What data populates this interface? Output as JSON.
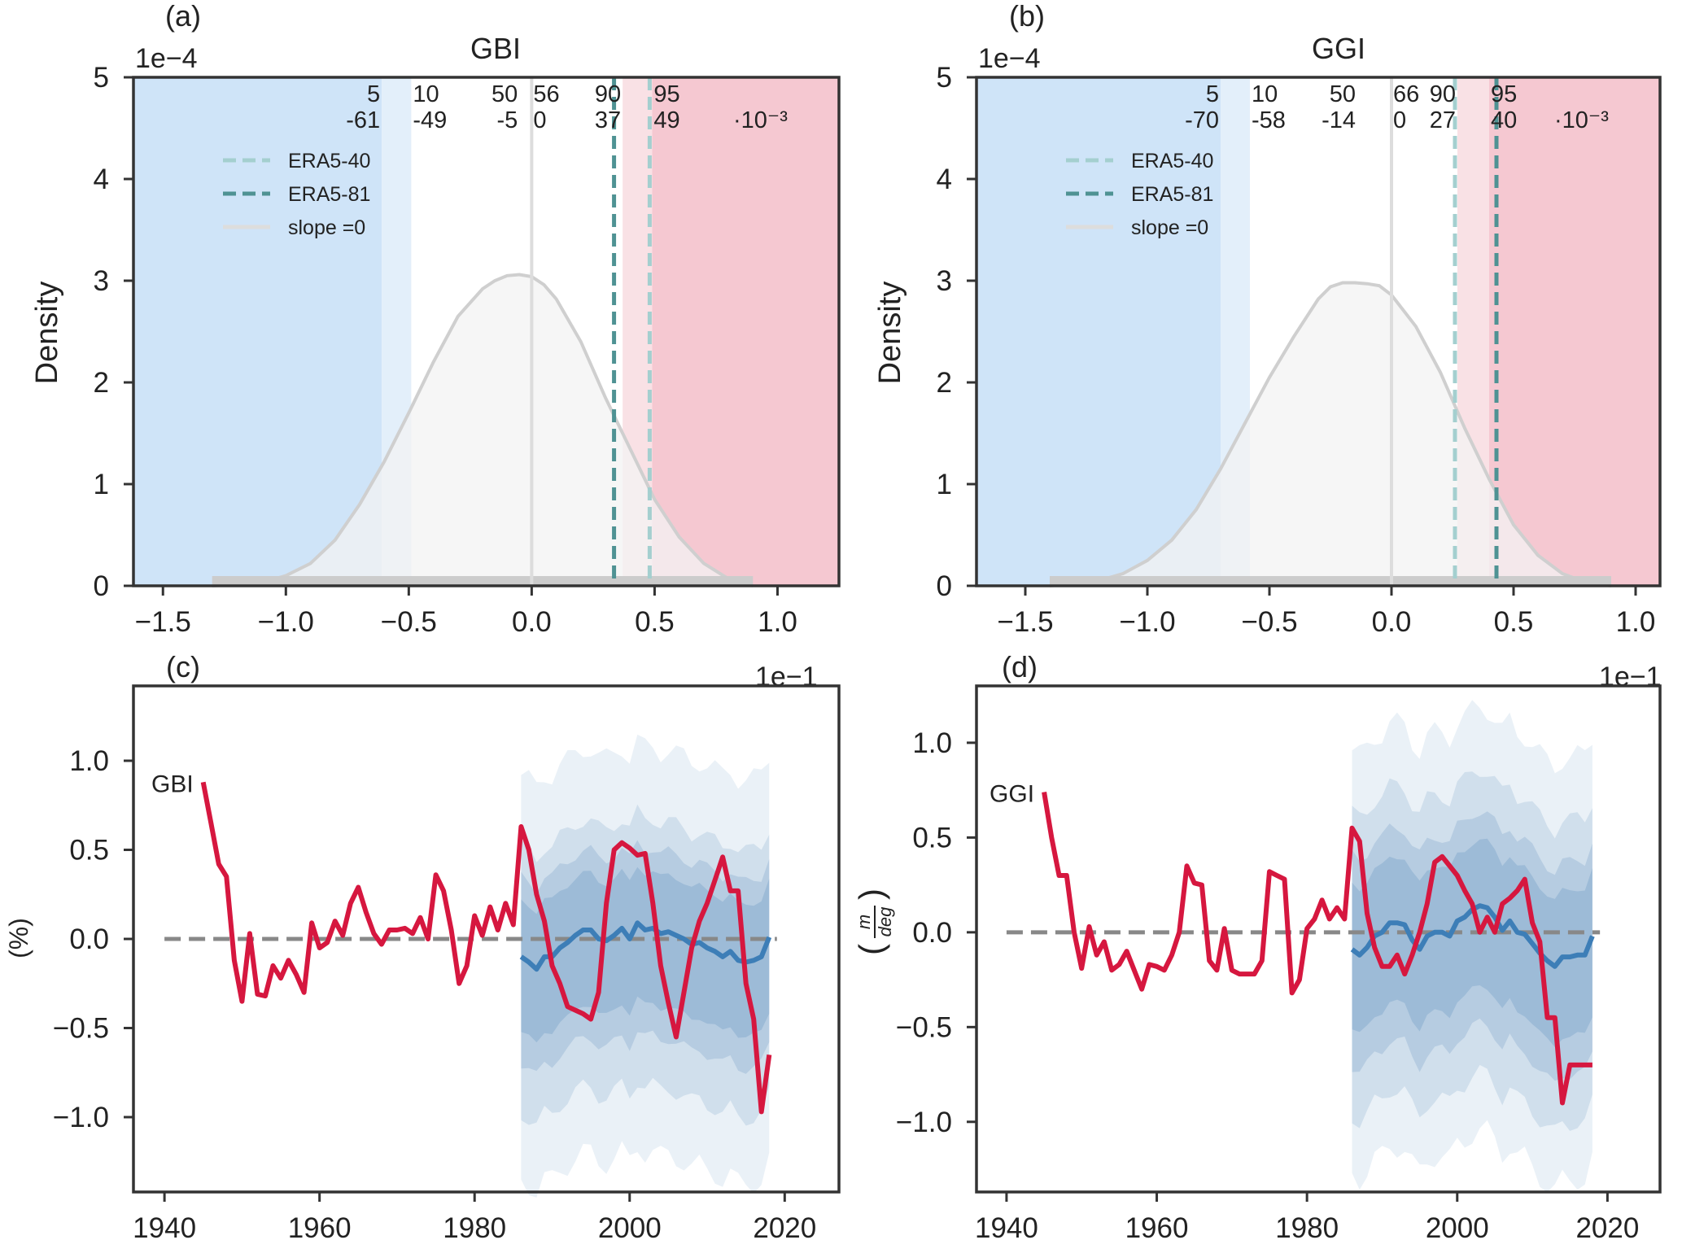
{
  "figure": {
    "colors": {
      "axis": "#333333",
      "blue_band_outer": "#cfe4f8",
      "blue_band_inner": "#e3effa",
      "pink_band_inner": "#f9e1e5",
      "pink_band_outer": "#f5c8d1",
      "kde_fill": "#f3f3f3",
      "kde_line": "#cfcfcf",
      "era5_40": "#a4cfcf",
      "era5_81": "#4f9293",
      "slope0": "#dddddd",
      "percentile_blue": "#2b8fe0",
      "percentile_red": "#d6203f",
      "obs_red": "#d6173f",
      "ens_blue": "#3d7eb7",
      "ens_fill": "#5f8fbe",
      "zero_line": "#888888"
    },
    "legend": {
      "era5_40": "ERA5-40",
      "era5_81": "ERA5-81",
      "slope0": "slope =0"
    }
  },
  "chart_data": [
    {
      "panel": "(a)",
      "type": "area",
      "title": "GBI",
      "ylabel": "Density",
      "y_scale_label": "1e−4",
      "x_scale_label": "1e−1",
      "xlim": [
        -1.62,
        1.25
      ],
      "ylim": [
        0,
        5
      ],
      "xticks": [
        -1.5,
        -1.0,
        -0.5,
        0.0,
        0.5,
        1.0
      ],
      "xtick_labels": [
        "−1.5",
        "−1.0",
        "−0.5",
        "0.0",
        "0.5",
        "1.0"
      ],
      "yticks": [
        0,
        1,
        2,
        3,
        4,
        5
      ],
      "ytick_labels": [
        "0",
        "1",
        "2",
        "3",
        "4",
        "5"
      ],
      "percentiles": [
        {
          "pct": "5",
          "value": "-61",
          "x": -0.61,
          "color": "blue"
        },
        {
          "pct": "10",
          "value": "-49",
          "x": -0.49,
          "color": "blue"
        },
        {
          "pct": "50",
          "value": "-5",
          "x": -0.05,
          "color": "blue"
        },
        {
          "pct": "56",
          "value": "0",
          "x": 0.0,
          "color": "red"
        },
        {
          "pct": "90",
          "value": "37",
          "x": 0.37,
          "color": "red"
        },
        {
          "pct": "95",
          "value": "49",
          "x": 0.49,
          "color": "red"
        }
      ],
      "units_note": "·10⁻³",
      "era5_40": 0.48,
      "era5_81": 0.335,
      "slope0": 0.0,
      "kde": {
        "x": [
          -1.3,
          -1.1,
          -1.0,
          -0.9,
          -0.8,
          -0.7,
          -0.6,
          -0.5,
          -0.4,
          -0.3,
          -0.2,
          -0.15,
          -0.1,
          -0.05,
          0.0,
          0.05,
          0.1,
          0.2,
          0.3,
          0.4,
          0.5,
          0.6,
          0.7,
          0.8,
          0.9
        ],
        "y": [
          0.0,
          0.03,
          0.1,
          0.22,
          0.45,
          0.8,
          1.22,
          1.7,
          2.2,
          2.65,
          2.92,
          3.0,
          3.05,
          3.06,
          3.04,
          2.96,
          2.82,
          2.4,
          1.85,
          1.35,
          0.85,
          0.48,
          0.22,
          0.07,
          0.0
        ]
      }
    },
    {
      "panel": "(b)",
      "type": "area",
      "title": "GGI",
      "ylabel": "Density",
      "y_scale_label": "1e−4",
      "x_scale_label": "1e−1",
      "xlim": [
        -1.7,
        1.1
      ],
      "ylim": [
        0,
        5
      ],
      "xticks": [
        -1.5,
        -1.0,
        -0.5,
        0.0,
        0.5,
        1.0
      ],
      "xtick_labels": [
        "−1.5",
        "−1.0",
        "−0.5",
        "0.0",
        "0.5",
        "1.0"
      ],
      "yticks": [
        0,
        1,
        2,
        3,
        4,
        5
      ],
      "ytick_labels": [
        "0",
        "1",
        "2",
        "3",
        "4",
        "5"
      ],
      "percentiles": [
        {
          "pct": "5",
          "value": "-70",
          "x": -0.7,
          "color": "blue"
        },
        {
          "pct": "10",
          "value": "-58",
          "x": -0.58,
          "color": "blue"
        },
        {
          "pct": "50",
          "value": "-14",
          "x": -0.14,
          "color": "blue"
        },
        {
          "pct": "66",
          "value": "0",
          "x": 0.0,
          "color": "red"
        },
        {
          "pct": "90",
          "value": "27",
          "x": 0.27,
          "color": "red"
        },
        {
          "pct": "95",
          "value": "40",
          "x": 0.4,
          "color": "red"
        }
      ],
      "units_note": "·10⁻³",
      "era5_40": 0.26,
      "era5_81": 0.43,
      "slope0": 0.0,
      "kde": {
        "x": [
          -1.4,
          -1.2,
          -1.1,
          -1.0,
          -0.9,
          -0.8,
          -0.7,
          -0.6,
          -0.5,
          -0.4,
          -0.3,
          -0.25,
          -0.2,
          -0.15,
          -0.1,
          -0.05,
          0.0,
          0.1,
          0.2,
          0.3,
          0.4,
          0.5,
          0.6,
          0.7,
          0.8,
          0.9
        ],
        "y": [
          0.0,
          0.05,
          0.12,
          0.25,
          0.45,
          0.75,
          1.15,
          1.6,
          2.05,
          2.45,
          2.82,
          2.94,
          2.98,
          2.98,
          2.97,
          2.95,
          2.86,
          2.55,
          2.1,
          1.55,
          1.05,
          0.6,
          0.3,
          0.12,
          0.03,
          0.0
        ]
      }
    },
    {
      "panel": "(c)",
      "type": "line",
      "ylabel": "(%)",
      "series_label": "GBI",
      "xlim": [
        1936,
        2027
      ],
      "ylim": [
        -1.42,
        1.42
      ],
      "xticks": [
        1940,
        1960,
        1980,
        2000,
        2020
      ],
      "xtick_labels": [
        "1940",
        "1960",
        "1980",
        "2000",
        "2020"
      ],
      "yticks": [
        -1.0,
        -0.5,
        0.0,
        0.5,
        1.0
      ],
      "ytick_labels": [
        "−1.0",
        "−0.5",
        "0.0",
        "0.5",
        "1.0"
      ],
      "observed": {
        "x": [
          1945,
          1946,
          1947,
          1948,
          1949,
          1950,
          1951,
          1952,
          1953,
          1954,
          1955,
          1956,
          1957,
          1958,
          1959,
          1960,
          1961,
          1962,
          1963,
          1964,
          1965,
          1966,
          1967,
          1968,
          1969,
          1970,
          1971,
          1972,
          1973,
          1974,
          1975,
          1976,
          1977,
          1978,
          1979,
          1980,
          1981,
          1982,
          1983,
          1984,
          1985,
          1986,
          1987,
          1988,
          1989,
          1990,
          1991,
          1992,
          1993,
          1994,
          1995,
          1996,
          1997,
          1998,
          1999,
          2000,
          2001,
          2002,
          2003,
          2004,
          2005,
          2006,
          2007,
          2008,
          2009,
          2010,
          2011,
          2012,
          2013,
          2014,
          2015,
          2016,
          2017,
          2018
        ],
        "y": [
          0.88,
          0.65,
          0.42,
          0.35,
          -0.12,
          -0.35,
          0.03,
          -0.31,
          -0.32,
          -0.15,
          -0.22,
          -0.12,
          -0.2,
          -0.3,
          0.09,
          -0.05,
          -0.02,
          0.1,
          0.02,
          0.2,
          0.29,
          0.15,
          0.03,
          -0.03,
          0.05,
          0.05,
          0.06,
          0.03,
          0.12,
          0.0,
          0.36,
          0.27,
          0.05,
          -0.25,
          -0.15,
          0.13,
          0.02,
          0.18,
          0.05,
          0.2,
          0.08,
          0.63,
          0.5,
          0.25,
          0.1,
          -0.15,
          -0.25,
          -0.38,
          -0.4,
          -0.42,
          -0.45,
          -0.3,
          0.2,
          0.5,
          0.54,
          0.51,
          0.47,
          0.48,
          0.2,
          -0.15,
          -0.36,
          -0.55,
          -0.3,
          -0.05,
          0.1,
          0.2,
          0.33,
          0.46,
          0.27,
          0.27,
          -0.25,
          -0.45,
          -0.97,
          -0.65
        ]
      },
      "ensemble_mean": {
        "x": [
          1986,
          1987,
          1988,
          1989,
          1990,
          1991,
          1992,
          1993,
          1994,
          1995,
          1996,
          1997,
          1998,
          1999,
          2000,
          2001,
          2002,
          2003,
          2004,
          2005,
          2006,
          2007,
          2008,
          2009,
          2010,
          2011,
          2012,
          2013,
          2014,
          2015,
          2016,
          2017,
          2018
        ],
        "y": [
          -0.1,
          -0.13,
          -0.17,
          -0.1,
          -0.1,
          -0.05,
          -0.02,
          0.02,
          0.05,
          0.05,
          0.0,
          -0.01,
          0.02,
          0.06,
          0.0,
          0.09,
          0.05,
          0.06,
          0.03,
          0.04,
          0.02,
          0.0,
          -0.03,
          -0.02,
          -0.05,
          -0.07,
          -0.1,
          -0.07,
          -0.12,
          -0.13,
          -0.12,
          -0.1,
          0.01
        ]
      },
      "ensemble_bands": [
        {
          "lower": -1.25,
          "upper": 1.02
        },
        {
          "lower": -0.88,
          "upper": 0.62
        },
        {
          "lower": -0.6,
          "upper": 0.45
        },
        {
          "lower": -0.42,
          "upper": 0.32
        }
      ],
      "ensemble_x_range": [
        1986,
        2018
      ],
      "zero_line": 0.0
    },
    {
      "panel": "(d)",
      "type": "line",
      "ylabel": "(m/deg)",
      "series_label": "GGI",
      "xlim": [
        1936,
        2027
      ],
      "ylim": [
        -1.37,
        1.3
      ],
      "xticks": [
        1940,
        1960,
        1980,
        2000,
        2020
      ],
      "xtick_labels": [
        "1940",
        "1960",
        "1980",
        "2000",
        "2020"
      ],
      "yticks": [
        -1.0,
        -0.5,
        0.0,
        0.5,
        1.0
      ],
      "ytick_labels": [
        "−1.0",
        "−0.5",
        "0.0",
        "0.5",
        "1.0"
      ],
      "observed": {
        "x": [
          1945,
          1946,
          1947,
          1948,
          1949,
          1950,
          1951,
          1952,
          1953,
          1954,
          1955,
          1956,
          1957,
          1958,
          1959,
          1960,
          1961,
          1962,
          1963,
          1964,
          1965,
          1966,
          1967,
          1968,
          1969,
          1970,
          1971,
          1972,
          1973,
          1974,
          1975,
          1976,
          1977,
          1978,
          1979,
          1980,
          1981,
          1982,
          1983,
          1984,
          1985,
          1986,
          1987,
          1988,
          1989,
          1990,
          1991,
          1992,
          1993,
          1994,
          1995,
          1996,
          1997,
          1998,
          1999,
          2000,
          2001,
          2002,
          2003,
          2004,
          2005,
          2006,
          2007,
          2008,
          2009,
          2010,
          2011,
          2012,
          2013,
          2014,
          2015,
          2016,
          2017,
          2018
        ],
        "y": [
          0.74,
          0.5,
          0.3,
          0.3,
          0.0,
          -0.19,
          0.03,
          -0.12,
          -0.05,
          -0.2,
          -0.17,
          -0.1,
          -0.2,
          -0.3,
          -0.17,
          -0.18,
          -0.2,
          -0.12,
          0.0,
          0.35,
          0.26,
          0.25,
          -0.15,
          -0.2,
          0.02,
          -0.2,
          -0.22,
          -0.22,
          -0.22,
          -0.15,
          0.32,
          0.3,
          0.28,
          -0.32,
          -0.25,
          0.02,
          0.07,
          0.17,
          0.07,
          0.13,
          0.07,
          0.55,
          0.48,
          0.1,
          -0.08,
          -0.18,
          -0.18,
          -0.12,
          -0.22,
          -0.12,
          0.0,
          0.15,
          0.37,
          0.4,
          0.35,
          0.3,
          0.22,
          0.15,
          0.0,
          0.08,
          0.0,
          0.15,
          0.18,
          0.22,
          0.28,
          0.05,
          -0.05,
          -0.45,
          -0.45,
          -0.9,
          -0.7,
          -0.7,
          -0.7,
          -0.7
        ]
      },
      "ensemble_mean": {
        "x": [
          1986,
          1987,
          1988,
          1989,
          1990,
          1991,
          1992,
          1993,
          1994,
          1995,
          1996,
          1997,
          1998,
          1999,
          2000,
          2001,
          2002,
          2003,
          2004,
          2005,
          2006,
          2007,
          2008,
          2009,
          2010,
          2011,
          2012,
          2013,
          2014,
          2015,
          2016,
          2017,
          2018
        ],
        "y": [
          -0.09,
          -0.12,
          -0.08,
          -0.02,
          0.0,
          0.05,
          0.05,
          0.04,
          -0.04,
          -0.09,
          -0.02,
          0.0,
          0.0,
          -0.02,
          0.06,
          0.08,
          0.12,
          0.14,
          0.13,
          0.08,
          0.01,
          0.06,
          0.0,
          -0.01,
          -0.06,
          -0.11,
          -0.15,
          -0.18,
          -0.13,
          -0.13,
          -0.12,
          -0.12,
          -0.02
        ]
      },
      "ensemble_bands": [
        {
          "lower": -1.18,
          "upper": 1.05
        },
        {
          "lower": -0.88,
          "upper": 0.72
        },
        {
          "lower": -0.62,
          "upper": 0.5
        },
        {
          "lower": -0.42,
          "upper": 0.35
        }
      ],
      "ensemble_x_range": [
        1986,
        2018
      ],
      "zero_line": 0.0
    }
  ]
}
